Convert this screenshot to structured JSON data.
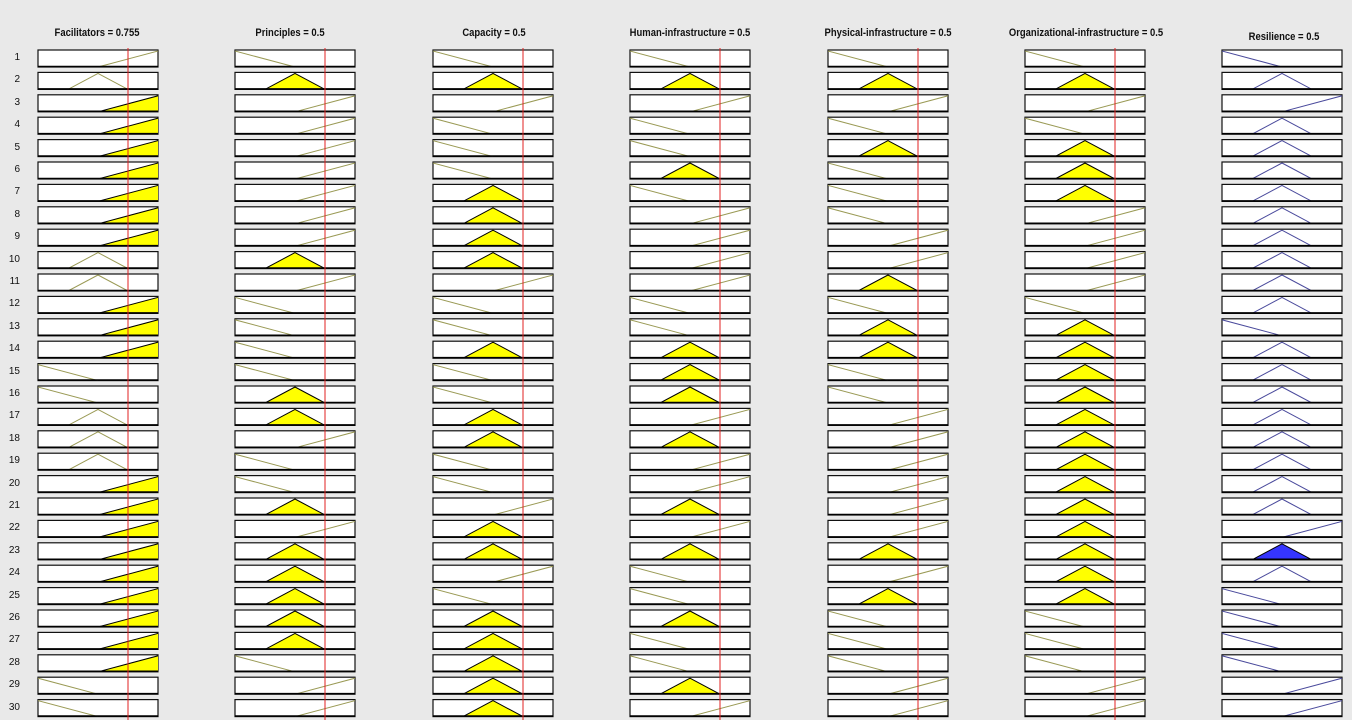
{
  "window": {
    "background": "#e9e9e9"
  },
  "colors": {
    "rule_line": "#e02020",
    "fired_fill": "#ffff00",
    "output_fill": "#3535ff",
    "input_mf": "#9a9a55",
    "output_mf": "#4a4a9c",
    "box_border": "#111111"
  },
  "columns": [
    {
      "title": "Facilitators = 0.755",
      "type": "input",
      "mfs": [
        0,
        2,
        3,
        3,
        3,
        3,
        3,
        3,
        3,
        2,
        2,
        3,
        3,
        3,
        1,
        1,
        2,
        2,
        2,
        3,
        3,
        3,
        3,
        3,
        3,
        3,
        3,
        3,
        1,
        1
      ],
      "fired": [
        0,
        0,
        1,
        1,
        1,
        1,
        1,
        1,
        1,
        0,
        0,
        1,
        1,
        1,
        0,
        0,
        0,
        0,
        0,
        1,
        1,
        1,
        1,
        1,
        1,
        1,
        1,
        1,
        0,
        0
      ]
    },
    {
      "title": "Principles = 0.5",
      "type": "input",
      "mfs": [
        1,
        2,
        3,
        3,
        3,
        3,
        3,
        3,
        3,
        2,
        3,
        1,
        1,
        1,
        1,
        2,
        2,
        3,
        1,
        1,
        2,
        3,
        2,
        2,
        2,
        2,
        2,
        1,
        3,
        3
      ],
      "fired": [
        0,
        1,
        0,
        0,
        0,
        0,
        0,
        0,
        0,
        1,
        0,
        0,
        0,
        0,
        0,
        1,
        1,
        0,
        0,
        0,
        1,
        0,
        1,
        1,
        1,
        1,
        1,
        0,
        0,
        0
      ]
    },
    {
      "title": "Capacity = 0.5",
      "type": "input",
      "mfs": [
        1,
        2,
        3,
        1,
        1,
        1,
        2,
        2,
        2,
        2,
        3,
        1,
        1,
        2,
        1,
        1,
        2,
        2,
        1,
        1,
        3,
        2,
        2,
        3,
        1,
        2,
        2,
        2,
        2,
        2
      ],
      "fired": [
        0,
        1,
        0,
        0,
        0,
        0,
        1,
        1,
        1,
        1,
        0,
        0,
        0,
        1,
        0,
        0,
        1,
        1,
        0,
        0,
        0,
        1,
        1,
        0,
        0,
        1,
        1,
        1,
        1,
        1
      ]
    },
    {
      "title": "Human-infrastructure = 0.5",
      "type": "input",
      "mfs": [
        1,
        2,
        3,
        1,
        1,
        2,
        1,
        3,
        3,
        3,
        3,
        1,
        1,
        2,
        2,
        2,
        3,
        2,
        3,
        3,
        2,
        3,
        2,
        1,
        1,
        2,
        1,
        1,
        2,
        3
      ],
      "fired": [
        0,
        1,
        0,
        0,
        0,
        1,
        0,
        0,
        0,
        0,
        0,
        0,
        0,
        1,
        1,
        1,
        0,
        1,
        0,
        0,
        1,
        0,
        1,
        0,
        0,
        1,
        0,
        0,
        1,
        0
      ]
    },
    {
      "title": "Physical-infrastructure = 0.5",
      "type": "input",
      "mfs": [
        1,
        2,
        3,
        1,
        2,
        1,
        1,
        1,
        3,
        3,
        2,
        1,
        2,
        2,
        1,
        1,
        3,
        3,
        3,
        3,
        3,
        3,
        2,
        3,
        2,
        1,
        1,
        1,
        3,
        3
      ],
      "fired": [
        0,
        1,
        0,
        0,
        1,
        0,
        0,
        0,
        0,
        0,
        1,
        0,
        1,
        1,
        0,
        0,
        0,
        0,
        0,
        0,
        0,
        0,
        1,
        0,
        1,
        0,
        0,
        0,
        0,
        0
      ]
    },
    {
      "title": "Organizational-infrastructure = 0.5",
      "type": "input",
      "mfs": [
        1,
        2,
        3,
        1,
        2,
        2,
        2,
        3,
        3,
        3,
        3,
        1,
        2,
        2,
        2,
        2,
        2,
        2,
        2,
        2,
        2,
        2,
        2,
        2,
        2,
        1,
        1,
        1,
        3,
        3
      ],
      "fired": [
        0,
        1,
        0,
        0,
        1,
        1,
        1,
        0,
        0,
        0,
        0,
        0,
        1,
        1,
        1,
        1,
        1,
        1,
        1,
        1,
        1,
        1,
        1,
        1,
        1,
        0,
        0,
        0,
        0,
        0
      ]
    },
    {
      "title": "Resilience = 0.5",
      "type": "output",
      "mfs": [
        1,
        2,
        3,
        2,
        2,
        2,
        2,
        2,
        2,
        2,
        2,
        2,
        1,
        2,
        2,
        2,
        2,
        2,
        2,
        2,
        2,
        3,
        2,
        2,
        1,
        1,
        1,
        1,
        3,
        3
      ],
      "fired": [
        0,
        0,
        0,
        0,
        0,
        0,
        0,
        0,
        0,
        0,
        0,
        0,
        0,
        0,
        0,
        0,
        0,
        0,
        0,
        0,
        0,
        0,
        1,
        0,
        0,
        0,
        0,
        0,
        0,
        0
      ]
    }
  ],
  "rule_numbers": [
    "1",
    "2",
    "3",
    "4",
    "5",
    "6",
    "7",
    "8",
    "9",
    "10",
    "11",
    "12",
    "13",
    "14",
    "15",
    "16",
    "17",
    "18",
    "19",
    "20",
    "21",
    "22",
    "23",
    "24",
    "25",
    "26",
    "27",
    "28",
    "29",
    "30"
  ]
}
